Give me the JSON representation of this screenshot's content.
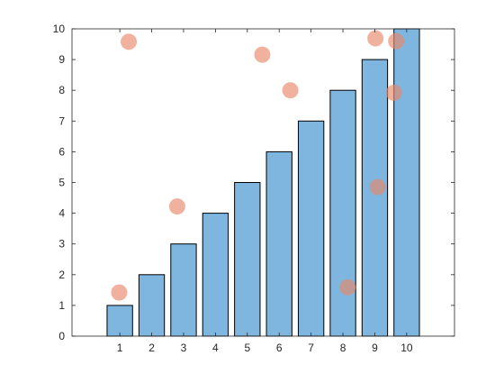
{
  "chart_data": {
    "type": "bar",
    "categories": [
      1,
      2,
      3,
      4,
      5,
      6,
      7,
      8,
      9,
      10
    ],
    "values": [
      1,
      2,
      3,
      4,
      5,
      6,
      7,
      8,
      9,
      10
    ],
    "overlay": {
      "type": "scatter",
      "points": [
        {
          "x": 0.98,
          "y": 1.42
        },
        {
          "x": 1.28,
          "y": 9.58
        },
        {
          "x": 2.8,
          "y": 4.22
        },
        {
          "x": 5.47,
          "y": 9.16
        },
        {
          "x": 6.35,
          "y": 8.0
        },
        {
          "x": 8.15,
          "y": 1.59
        },
        {
          "x": 9.02,
          "y": 9.69
        },
        {
          "x": 9.09,
          "y": 4.85
        },
        {
          "x": 9.6,
          "y": 7.92
        },
        {
          "x": 9.67,
          "y": 9.6
        }
      ]
    },
    "xlim": [
      -0.5,
      11.5
    ],
    "ylim": [
      0,
      10
    ],
    "xticks": [
      1,
      2,
      3,
      4,
      5,
      6,
      7,
      8,
      9,
      10
    ],
    "yticks": [
      0,
      1,
      2,
      3,
      4,
      5,
      6,
      7,
      8,
      9,
      10
    ],
    "grid": false,
    "legend": "none",
    "colors": {
      "bar_fill": "#7EB6E0",
      "bar_edge": "#000000",
      "marker": "#E8896A",
      "axis": "#262626"
    },
    "marker_alpha": 0.65
  }
}
